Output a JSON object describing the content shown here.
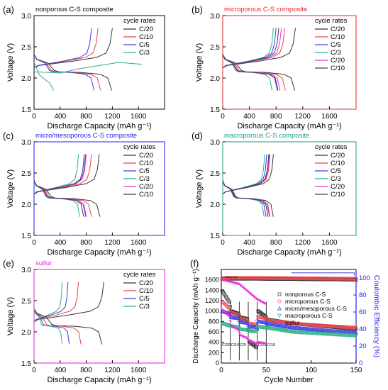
{
  "colors": {
    "axis": "#000000",
    "curve": [
      "#333333",
      "#e8434a",
      "#3a3fe0",
      "#2fae8c",
      "#e830d8",
      "#3a3a6a"
    ],
    "panel_frame": {
      "a": "#000000",
      "b": "#e8232a",
      "c": "#2222ee",
      "d": "#1a9a8a",
      "e": "#e81ee0",
      "f": "#000000"
    },
    "f_series": {
      "nonporous": "#333333",
      "microporous": "#e8434a",
      "micromeso": "#3a3fe0",
      "macroporous": "#2fae8c",
      "sulfur": "#e830d8"
    }
  },
  "panels": {
    "a": {
      "letter": "(a)",
      "title": "nonporous C-S composite",
      "ylabel": "Voltage (V)",
      "xlabel": "Discharge Capacity (mAh g⁻¹)",
      "legend_title": "cycle rates",
      "legend": [
        "C/20",
        "C/10",
        "C/5",
        "C/3"
      ],
      "yticks": [
        "1.5",
        "2.0",
        "2.5",
        "3.0"
      ],
      "xticks": [
        "0",
        "400",
        "800",
        "1200",
        "1600"
      ]
    },
    "b": {
      "letter": "(b)",
      "title": "microporous C-S composite",
      "ylabel": "Voltage (V)",
      "xlabel": "Discharge Capacity (mAh g⁻¹)",
      "legend_title": "cycle rates",
      "legend": [
        "C/20",
        "C/10",
        "C/5",
        "C/3",
        "C/20",
        "C/10"
      ],
      "yticks": [
        "1.5",
        "2.0",
        "2.5",
        "3.0"
      ],
      "xticks": [
        "0",
        "400",
        "800",
        "1200",
        "1600"
      ]
    },
    "c": {
      "letter": "(c)",
      "title": "micro/mesoporous C-S composite",
      "ylabel": "Voltage (V)",
      "xlabel": "Discharge Capacity (mAh g⁻¹)",
      "legend_title": "cycle rates",
      "legend": [
        "C/20",
        "C/10",
        "C/5",
        "C/3",
        "C/20",
        "C/10"
      ],
      "yticks": [
        "1.5",
        "2.0",
        "2.5",
        "3.0"
      ],
      "xticks": [
        "0",
        "400",
        "800",
        "1200",
        "1600"
      ]
    },
    "d": {
      "letter": "(d)",
      "title": "macroporous C-S composite",
      "ylabel": "Voltage (V)",
      "xlabel": "Discharge Capacity (mAh g⁻¹)",
      "legend_title": "cycle rates",
      "legend": [
        "C/20",
        "C/10",
        "C/5",
        "C/3",
        "C/20",
        "C/10"
      ],
      "yticks": [
        "1.5",
        "2.0",
        "2.5",
        "3.0"
      ],
      "xticks": [
        "0",
        "400",
        "800",
        "1200",
        "1600"
      ]
    },
    "e": {
      "letter": "(e)",
      "title": "sulfur",
      "ylabel": "Voltage (V)",
      "xlabel": "Discharge Capacity (mAh g⁻¹)",
      "legend_title": "cycle rates",
      "legend": [
        "C/20",
        "C/10",
        "C/5",
        "C/3"
      ],
      "yticks": [
        "1.5",
        "2.0",
        "2.5",
        "3.0"
      ],
      "xticks": [
        "0",
        "400",
        "800",
        "1200",
        "1600"
      ]
    },
    "f": {
      "letter": "(f)",
      "ylabel": "Discharge Capacity (mAh g⁻¹)",
      "y2label": "Coulombic Efficiency (%)",
      "xlabel": "Cycle Number",
      "legend": [
        "nonporous C-S",
        "microporous C-S",
        "micro/mesoporous C-S",
        "macroporous C-S",
        "sulfur"
      ],
      "yticks": [
        "0",
        "200",
        "400",
        "600",
        "800",
        "1000",
        "1200",
        "1400",
        "1600"
      ],
      "y2ticks": [
        "0",
        "20",
        "40",
        "60",
        "80",
        "100"
      ],
      "xticks": [
        "0",
        "50",
        "100",
        "150"
      ],
      "rate_labels": [
        "C/20",
        "C/10",
        "C/5",
        "C/3",
        "C/20",
        "C/10"
      ]
    }
  },
  "chart_data": [
    {
      "type": "line",
      "panel": "a",
      "title": "nonporous C-S composite",
      "xlabel": "Discharge Capacity (mAh g⁻¹)",
      "ylabel": "Voltage (V)",
      "xlim": [
        0,
        2000
      ],
      "ylim": [
        1.5,
        3.0
      ],
      "series": [
        {
          "name": "C/20",
          "discharge_capacity": 1190,
          "charge_capacity": 1200
        },
        {
          "name": "C/10",
          "discharge_capacity": 1020,
          "charge_capacity": 980
        },
        {
          "name": "C/5",
          "discharge_capacity": 920,
          "charge_capacity": 880
        },
        {
          "name": "C/3",
          "discharge_capacity": 300,
          "charge_capacity": 1650
        }
      ]
    },
    {
      "type": "line",
      "panel": "b",
      "title": "microporous C-S composite",
      "xlabel": "Discharge Capacity (mAh g⁻¹)",
      "ylabel": "Voltage (V)",
      "xlim": [
        0,
        2000
      ],
      "ylim": [
        1.5,
        3.0
      ],
      "series": [
        {
          "name": "C/20",
          "discharge_capacity": 1080,
          "charge_capacity": 1090
        },
        {
          "name": "C/10",
          "discharge_capacity": 940,
          "charge_capacity": 930
        },
        {
          "name": "C/5",
          "discharge_capacity": 830,
          "charge_capacity": 800
        },
        {
          "name": "C/3",
          "discharge_capacity": 740,
          "charge_capacity": 760
        },
        {
          "name": "C/20",
          "discharge_capacity": 860,
          "charge_capacity": 880
        },
        {
          "name": "C/10",
          "discharge_capacity": 820,
          "charge_capacity": 840
        }
      ]
    },
    {
      "type": "line",
      "panel": "c",
      "title": "micro/mesoporous C-S composite",
      "xlabel": "Discharge Capacity (mAh g⁻¹)",
      "ylabel": "Voltage (V)",
      "xlim": [
        0,
        2000
      ],
      "ylim": [
        1.5,
        3.0
      ],
      "series": [
        {
          "name": "C/20",
          "discharge_capacity": 1010,
          "charge_capacity": 1000
        },
        {
          "name": "C/10",
          "discharge_capacity": 880,
          "charge_capacity": 880
        },
        {
          "name": "C/5",
          "discharge_capacity": 800,
          "charge_capacity": 790
        },
        {
          "name": "C/3",
          "discharge_capacity": 700,
          "charge_capacity": 680
        },
        {
          "name": "C/20",
          "discharge_capacity": 790,
          "charge_capacity": 800
        },
        {
          "name": "C/10",
          "discharge_capacity": 760,
          "charge_capacity": 770
        }
      ]
    },
    {
      "type": "line",
      "panel": "d",
      "title": "macroporous C-S composite",
      "xlabel": "Discharge Capacity (mAh g⁻¹)",
      "ylabel": "Voltage (V)",
      "xlim": [
        0,
        2000
      ],
      "ylim": [
        1.5,
        3.0
      ],
      "series": [
        {
          "name": "C/20",
          "discharge_capacity": 760,
          "charge_capacity": 760
        },
        {
          "name": "C/10",
          "discharge_capacity": 710,
          "charge_capacity": 710
        },
        {
          "name": "C/5",
          "discharge_capacity": 650,
          "charge_capacity": 660
        },
        {
          "name": "C/3",
          "discharge_capacity": 620,
          "charge_capacity": 630
        },
        {
          "name": "C/20",
          "discharge_capacity": 700,
          "charge_capacity": 700
        },
        {
          "name": "C/10",
          "discharge_capacity": 680,
          "charge_capacity": 690
        }
      ]
    },
    {
      "type": "line",
      "panel": "e",
      "title": "sulfur",
      "xlabel": "Discharge Capacity (mAh g⁻¹)",
      "ylabel": "Voltage (V)",
      "xlim": [
        0,
        2000
      ],
      "ylim": [
        1.5,
        3.0
      ],
      "series": [
        {
          "name": "C/20",
          "discharge_capacity": 1040,
          "charge_capacity": 1070
        },
        {
          "name": "C/10",
          "discharge_capacity": 720,
          "charge_capacity": 680
        },
        {
          "name": "C/5",
          "discharge_capacity": 540,
          "charge_capacity": 520
        },
        {
          "name": "C/3",
          "discharge_capacity": 430,
          "charge_capacity": 430
        }
      ]
    },
    {
      "type": "scatter",
      "panel": "f",
      "xlabel": "Cycle Number",
      "ylabel": "Discharge Capacity (mAh g⁻¹)",
      "y2label": "Coulombic Efficiency (%)",
      "xlim": [
        0,
        150
      ],
      "ylim": [
        0,
        1800
      ],
      "y2lim": [
        0,
        110
      ],
      "rate_steps": [
        {
          "rate": "C/20",
          "start": 0
        },
        {
          "rate": "C/10",
          "start": 10
        },
        {
          "rate": "C/5",
          "start": 20
        },
        {
          "rate": "C/3",
          "start": 30
        },
        {
          "rate": "C/20",
          "start": 40
        },
        {
          "rate": "C/10",
          "start": 50
        }
      ],
      "series": [
        {
          "name": "nonporous C-S",
          "capacity": [
            [
              1,
              1390
            ],
            [
              9,
              1170
            ],
            [
              11,
              1000
            ],
            [
              19,
              950
            ],
            [
              21,
              880
            ],
            [
              29,
              850
            ],
            [
              31,
              420
            ],
            [
              39,
              300
            ],
            [
              41,
              1000
            ],
            [
              49,
              900
            ],
            [
              51,
              840
            ],
            [
              80,
              760
            ],
            [
              120,
              700
            ],
            [
              150,
              650
            ]
          ]
        },
        {
          "name": "microporous C-S",
          "capacity": [
            [
              1,
              1180
            ],
            [
              9,
              1050
            ],
            [
              11,
              960
            ],
            [
              19,
              930
            ],
            [
              21,
              860
            ],
            [
              29,
              820
            ],
            [
              31,
              760
            ],
            [
              39,
              740
            ],
            [
              41,
              890
            ],
            [
              49,
              860
            ],
            [
              51,
              830
            ],
            [
              80,
              760
            ],
            [
              120,
              710
            ],
            [
              150,
              680
            ]
          ]
        },
        {
          "name": "micro/mesoporous C-S",
          "capacity": [
            [
              1,
              1000
            ],
            [
              9,
              950
            ],
            [
              11,
              880
            ],
            [
              19,
              860
            ],
            [
              21,
              790
            ],
            [
              29,
              770
            ],
            [
              31,
              700
            ],
            [
              39,
              690
            ],
            [
              41,
              800
            ],
            [
              49,
              780
            ],
            [
              51,
              760
            ],
            [
              80,
              680
            ],
            [
              120,
              620
            ],
            [
              150,
              580
            ]
          ]
        },
        {
          "name": "macroporous C-S",
          "capacity": [
            [
              1,
              760
            ],
            [
              9,
              720
            ],
            [
              11,
              710
            ],
            [
              19,
              690
            ],
            [
              21,
              650
            ],
            [
              29,
              640
            ],
            [
              31,
              620
            ],
            [
              39,
              610
            ],
            [
              41,
              700
            ],
            [
              49,
              680
            ],
            [
              51,
              680
            ],
            [
              80,
              600
            ],
            [
              120,
              560
            ],
            [
              150,
              530
            ]
          ]
        },
        {
          "name": "sulfur",
          "capacity": [
            [
              1,
              1030
            ],
            [
              9,
              900
            ],
            [
              11,
              720
            ],
            [
              19,
              640
            ],
            [
              21,
              540
            ],
            [
              29,
              480
            ],
            [
              31,
              430
            ],
            [
              39,
              380
            ],
            [
              41,
              400
            ],
            [
              49,
              380
            ]
          ]
        }
      ],
      "coulombic_efficiency": [
        {
          "name": "nonporous C-S",
          "values": [
            [
              1,
              99
            ],
            [
              40,
              99
            ],
            [
              150,
              98
            ]
          ]
        },
        {
          "name": "microporous C-S",
          "values": [
            [
              1,
              100
            ],
            [
              40,
              100
            ],
            [
              150,
              99
            ]
          ]
        },
        {
          "name": "sulfur",
          "values": [
            [
              1,
              98
            ],
            [
              20,
              93
            ],
            [
              30,
              84
            ],
            [
              40,
              75
            ],
            [
              49,
              70
            ]
          ]
        }
      ]
    }
  ]
}
